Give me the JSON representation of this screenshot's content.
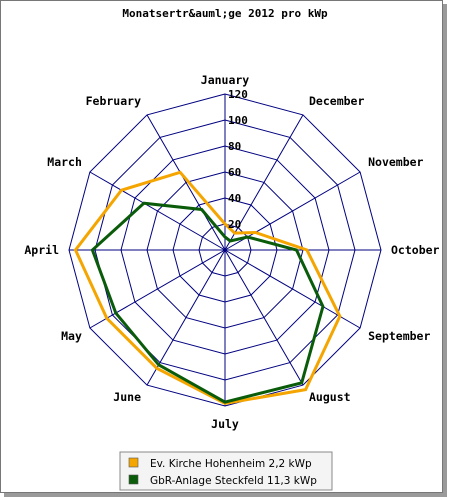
{
  "chart_data": {
    "type": "radar",
    "title": "Monatsertr&auml;ge 2012 pro kWp",
    "categories": [
      "January",
      "February",
      "March",
      "April",
      "May",
      "June",
      "July",
      "August",
      "September",
      "October",
      "November",
      "December"
    ],
    "ylim": [
      0,
      120
    ],
    "ticks": [
      "20",
      "40",
      "60",
      "80",
      "100",
      "120"
    ],
    "grid": true,
    "legend_position": "bottom-center",
    "series": [
      {
        "name": "Ev. Kirche Hohenheim 2,2 kWp",
        "color": "#f5a500",
        "values": [
          20,
          69,
          92,
          115,
          105,
          105,
          118,
          124,
          102,
          63,
          27,
          15
        ]
      },
      {
        "name": "GbR-Anlage Steckfeld 11,3 kWp",
        "color": "#0a5c0a",
        "values": [
          10,
          36,
          72,
          102,
          97,
          102,
          117,
          118,
          87,
          55,
          20,
          8
        ]
      }
    ]
  }
}
